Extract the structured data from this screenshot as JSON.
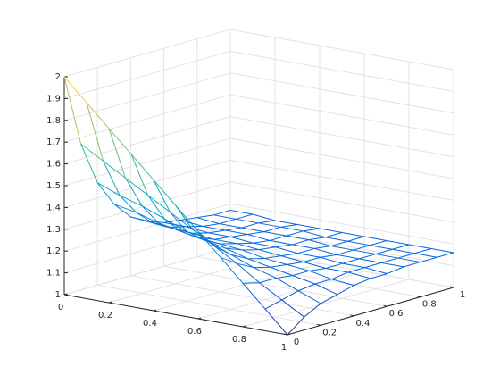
{
  "chart_data": {
    "type": "mesh",
    "colormap": "parula",
    "grid": true,
    "x": [
      0,
      0.1,
      0.2,
      0.3,
      0.4,
      0.5,
      0.6,
      0.7,
      0.8,
      0.9,
      1
    ],
    "y": [
      0,
      0.1,
      0.2,
      0.3,
      0.4,
      0.5,
      0.6,
      0.7,
      0.8,
      0.9,
      1
    ],
    "z": [
      [
        2.0,
        1.9,
        1.8,
        1.7,
        1.6,
        1.5,
        1.4,
        1.3,
        1.2,
        1.1,
        1.0
      ],
      [
        1.67,
        1.61,
        1.55,
        1.49,
        1.43,
        1.37,
        1.31,
        1.25,
        1.18,
        1.12,
        1.06
      ],
      [
        1.47,
        1.43,
        1.4,
        1.36,
        1.32,
        1.29,
        1.25,
        1.21,
        1.18,
        1.14,
        1.1
      ],
      [
        1.35,
        1.33,
        1.3,
        1.28,
        1.26,
        1.24,
        1.21,
        1.19,
        1.17,
        1.15,
        1.12
      ],
      [
        1.27,
        1.26,
        1.25,
        1.23,
        1.22,
        1.21,
        1.19,
        1.18,
        1.17,
        1.15,
        1.14
      ],
      [
        1.23,
        1.22,
        1.21,
        1.2,
        1.2,
        1.19,
        1.18,
        1.17,
        1.16,
        1.16,
        1.15
      ],
      [
        1.2,
        1.2,
        1.19,
        1.19,
        1.18,
        1.18,
        1.17,
        1.17,
        1.16,
        1.16,
        1.15
      ],
      [
        1.19,
        1.18,
        1.18,
        1.18,
        1.17,
        1.17,
        1.17,
        1.16,
        1.16,
        1.16,
        1.16
      ],
      [
        1.18,
        1.17,
        1.17,
        1.17,
        1.17,
        1.17,
        1.16,
        1.16,
        1.16,
        1.16,
        1.16
      ],
      [
        1.17,
        1.17,
        1.17,
        1.17,
        1.17,
        1.16,
        1.16,
        1.16,
        1.16,
        1.16,
        1.16
      ],
      [
        1.17,
        1.17,
        1.16,
        1.16,
        1.16,
        1.16,
        1.16,
        1.16,
        1.16,
        1.16,
        1.16
      ]
    ],
    "xlim": [
      0,
      1
    ],
    "ylim": [
      0,
      1
    ],
    "zlim": [
      1,
      2
    ],
    "xticks": [
      0,
      0.2,
      0.4,
      0.6,
      0.8,
      1
    ],
    "yticks": [
      0,
      0.2,
      0.4,
      0.6,
      0.8,
      1
    ],
    "zticks": [
      1,
      1.1,
      1.2,
      1.3,
      1.4,
      1.5,
      1.6,
      1.7,
      1.8,
      1.9,
      2
    ]
  }
}
